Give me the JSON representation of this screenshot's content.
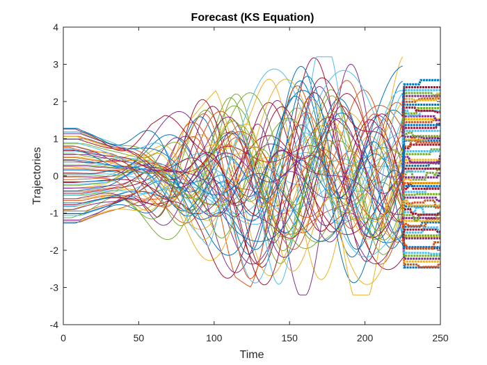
{
  "chart_data": {
    "type": "line",
    "title": "Forecast (KS Equation)",
    "xlabel": "Time",
    "ylabel": "Trajectories",
    "xlim": [
      0,
      250
    ],
    "ylim": [
      -4,
      4
    ],
    "xticks": [
      0,
      50,
      100,
      150,
      200,
      250
    ],
    "yticks": [
      -4,
      -3,
      -2,
      -1,
      0,
      1,
      2,
      3,
      4
    ],
    "grid": false,
    "legend": "none",
    "series_count": 64,
    "forecast_start": 225,
    "initial_range": [
      -1.3,
      1.3
    ],
    "chaotic_range": [
      -3.2,
      3.2
    ],
    "colors": [
      "#0072BD",
      "#D95319",
      "#EDB120",
      "#7E2F8E",
      "#77AC30",
      "#4DBEEE",
      "#A2142F"
    ]
  }
}
